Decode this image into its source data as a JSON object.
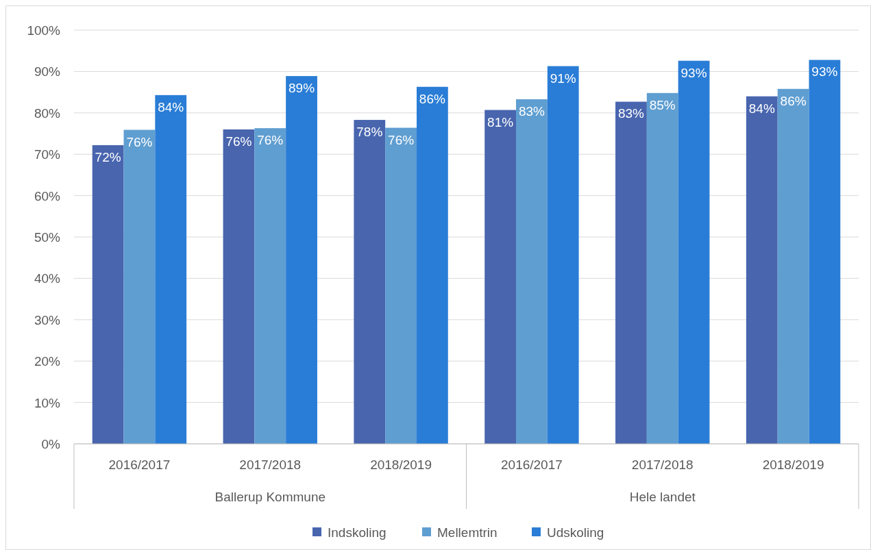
{
  "chart_data": {
    "type": "bar",
    "categories": [
      "2016/2017",
      "2017/2018",
      "2018/2019",
      "2016/2017",
      "2017/2018",
      "2018/2019"
    ],
    "series": [
      {
        "name": "Indskoling",
        "color": "#4865ae",
        "values": [
          72.2,
          76,
          78.3,
          80.7,
          82.7,
          84
        ],
        "value_labels": [
          "72%",
          "76%",
          "78%",
          "81%",
          "83%",
          "84%"
        ]
      },
      {
        "name": "Mellemtrin",
        "color": "#5f9ed1",
        "values": [
          75.9,
          76.3,
          76.4,
          83.3,
          84.8,
          85.8
        ],
        "value_labels": [
          "76%",
          "76%",
          "76%",
          "83%",
          "85%",
          "86%"
        ]
      },
      {
        "name": "Udskoling",
        "color": "#2a7dd6",
        "values": [
          84.3,
          88.9,
          86.3,
          91.3,
          92.6,
          92.8
        ],
        "value_labels": [
          "84%",
          "89%",
          "86%",
          "91%",
          "93%",
          "93%"
        ]
      }
    ],
    "annotations": [
      "Ballerup Kommune",
      "Hele landet"
    ],
    "ylim": [
      0,
      100
    ],
    "yticks": [
      {
        "value": 0,
        "label": "0%"
      },
      {
        "value": 10,
        "label": "10%"
      },
      {
        "value": 20,
        "label": "20%"
      },
      {
        "value": 30,
        "label": "30%"
      },
      {
        "value": 40,
        "label": "40%"
      },
      {
        "value": 50,
        "label": "50%"
      },
      {
        "value": 60,
        "label": "60%"
      },
      {
        "value": 70,
        "label": "70%"
      },
      {
        "value": 80,
        "label": "80%"
      },
      {
        "value": 90,
        "label": "90%"
      },
      {
        "value": 100,
        "label": "100%"
      }
    ],
    "grid": "y",
    "legend": "bottom"
  }
}
